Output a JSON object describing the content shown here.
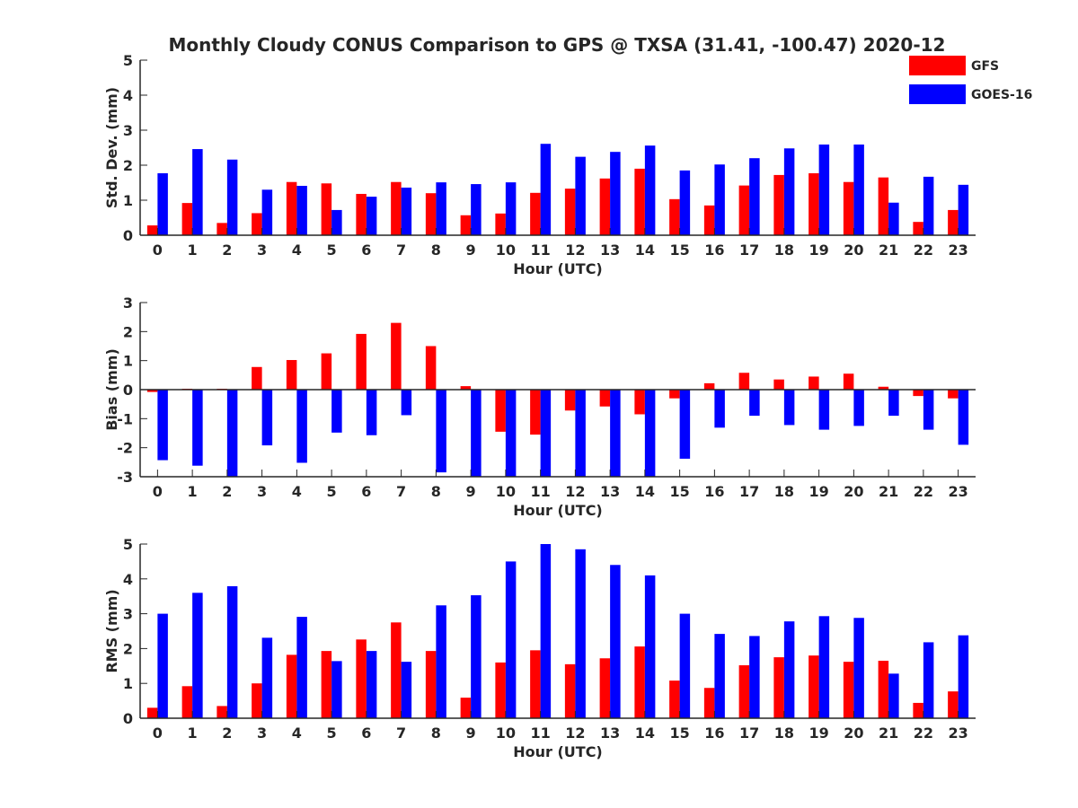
{
  "title": "Monthly Cloudy CONUS Comparison to GPS @ TXSA (31.41, -100.47) 2020-12",
  "legend": {
    "placement": "top-right",
    "entries": [
      {
        "name": "GFS",
        "color": "#ff0000"
      },
      {
        "name": "GOES-16",
        "color": "#0000ff"
      }
    ]
  },
  "chart_data": [
    {
      "type": "bar",
      "xlabel": "Hour (UTC)",
      "ylabel": "Std. Dev. (mm)",
      "ylim": [
        0,
        5
      ],
      "yticks": [
        0,
        1,
        2,
        3,
        4,
        5
      ],
      "categories": [
        "0",
        "1",
        "2",
        "3",
        "4",
        "5",
        "6",
        "7",
        "8",
        "9",
        "10",
        "11",
        "12",
        "13",
        "14",
        "15",
        "16",
        "17",
        "18",
        "19",
        "20",
        "21",
        "22",
        "23"
      ],
      "series": [
        {
          "name": "GFS",
          "color": "#ff0000",
          "values": [
            0.28,
            0.92,
            0.35,
            0.63,
            1.52,
            1.48,
            1.18,
            1.52,
            1.2,
            0.57,
            0.62,
            1.21,
            1.33,
            1.62,
            1.9,
            1.03,
            0.85,
            1.42,
            1.72,
            1.77,
            1.52,
            1.65,
            0.38,
            0.72
          ]
        },
        {
          "name": "GOES-16",
          "color": "#0000ff",
          "values": [
            1.77,
            2.46,
            2.16,
            1.3,
            1.41,
            0.72,
            1.1,
            1.36,
            1.51,
            1.46,
            1.51,
            2.61,
            2.24,
            2.38,
            2.56,
            1.85,
            2.02,
            2.2,
            2.48,
            2.59,
            2.59,
            0.93,
            1.67,
            1.44
          ]
        }
      ]
    },
    {
      "type": "bar",
      "xlabel": "Hour (UTC)",
      "ylabel": "Bias (mm)",
      "ylim": [
        -3,
        3
      ],
      "yticks": [
        -3,
        -2,
        -1,
        0,
        1,
        2,
        3
      ],
      "zero_line": true,
      "categories": [
        "0",
        "1",
        "2",
        "3",
        "4",
        "5",
        "6",
        "7",
        "8",
        "9",
        "10",
        "11",
        "12",
        "13",
        "14",
        "15",
        "16",
        "17",
        "18",
        "19",
        "20",
        "21",
        "22",
        "23"
      ],
      "series": [
        {
          "name": "GFS",
          "color": "#ff0000",
          "values": [
            -0.08,
            0.03,
            0.03,
            0.78,
            1.02,
            1.25,
            1.92,
            2.3,
            1.5,
            0.12,
            -1.45,
            -1.55,
            -0.72,
            -0.58,
            -0.85,
            -0.3,
            0.22,
            0.58,
            0.35,
            0.45,
            0.55,
            0.1,
            -0.22,
            -0.3
          ]
        },
        {
          "name": "GOES-16",
          "color": "#0000ff",
          "values": [
            -2.43,
            -2.62,
            -3.0,
            -1.92,
            -2.52,
            -1.48,
            -1.57,
            -0.88,
            -2.85,
            -3.0,
            -3.0,
            -3.0,
            -3.0,
            -3.0,
            -3.0,
            -2.38,
            -1.31,
            -0.9,
            -1.22,
            -1.38,
            -1.25,
            -0.9,
            -1.38,
            -1.9
          ]
        }
      ]
    },
    {
      "type": "bar",
      "xlabel": "Hour (UTC)",
      "ylabel": "RMS (mm)",
      "ylim": [
        0,
        5
      ],
      "yticks": [
        0,
        1,
        2,
        3,
        4,
        5
      ],
      "categories": [
        "0",
        "1",
        "2",
        "3",
        "4",
        "5",
        "6",
        "7",
        "8",
        "9",
        "10",
        "11",
        "12",
        "13",
        "14",
        "15",
        "16",
        "17",
        "18",
        "19",
        "20",
        "21",
        "22",
        "23"
      ],
      "series": [
        {
          "name": "GFS",
          "color": "#ff0000",
          "values": [
            0.3,
            0.92,
            0.35,
            1.0,
            1.82,
            1.93,
            2.26,
            2.75,
            1.93,
            0.59,
            1.6,
            1.95,
            1.55,
            1.72,
            2.06,
            1.08,
            0.87,
            1.52,
            1.75,
            1.8,
            1.62,
            1.65,
            0.44,
            0.77
          ]
        },
        {
          "name": "GOES-16",
          "color": "#0000ff",
          "values": [
            3.0,
            3.6,
            3.79,
            2.31,
            2.91,
            1.64,
            1.93,
            1.62,
            3.24,
            3.53,
            4.5,
            5.0,
            4.85,
            4.4,
            4.1,
            3.0,
            2.42,
            2.36,
            2.78,
            2.93,
            2.88,
            1.28,
            2.18,
            2.38
          ]
        }
      ]
    }
  ]
}
